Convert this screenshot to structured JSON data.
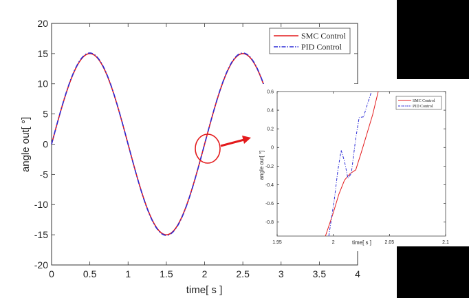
{
  "chart_data": [
    {
      "type": "line",
      "title": "",
      "xlabel": "time[ s ]",
      "ylabel": "angle out[ °]",
      "xlim": [
        0,
        4
      ],
      "ylim": [
        -20,
        20
      ],
      "xticks": [
        0,
        0.5,
        1,
        1.5,
        2,
        2.5,
        3,
        3.5,
        4
      ],
      "xtick_labels": [
        "0",
        "0.5",
        "1",
        "1.5",
        "2",
        "2.5",
        "3",
        "3.5",
        "4"
      ],
      "yticks": [
        -20,
        -15,
        -10,
        -5,
        0,
        5,
        10,
        15,
        20
      ],
      "ytick_labels": [
        "-20",
        "-15",
        "-10",
        "-5",
        "0",
        "5",
        "10",
        "15",
        "20"
      ],
      "grid": false,
      "legend": "top-right",
      "x_end": 2.82,
      "series": [
        {
          "name": "SMC Control",
          "color": "#e31a1c",
          "style": "solid",
          "amplitude": 15,
          "period": 2
        },
        {
          "name": "PID Control",
          "color": "#2b2bd6",
          "style": "dash-dot",
          "amplitude": 15.1,
          "period": 2
        }
      ],
      "annotations": [
        {
          "type": "ellipse",
          "x": 2.03,
          "y": 0,
          "color": "#e31a1c"
        },
        {
          "type": "arrow",
          "from": [
            2.2,
            0
          ],
          "to": "zoom-inset",
          "color": "#e31a1c"
        }
      ]
    },
    {
      "type": "line",
      "title": "",
      "xlabel": "time[ s ]",
      "ylabel": "angle out[ °]",
      "xlim": [
        1.95,
        2.1
      ],
      "ylim": [
        -0.95,
        0.6
      ],
      "xticks": [
        1.95,
        2,
        2.05,
        2.1
      ],
      "xtick_labels": [
        "1.95",
        "2",
        "2.05",
        "2.1"
      ],
      "yticks": [
        -0.8,
        -0.6,
        -0.4,
        -0.2,
        0,
        0.2,
        0.4,
        0.6
      ],
      "ytick_labels": [
        "-0.8",
        "-0.6",
        "-0.4",
        "-0.2",
        "0",
        "0.2",
        "0.4",
        "0.6"
      ],
      "grid": false,
      "legend": "top-right",
      "series": [
        {
          "name": "SMC Control",
          "color": "#e31a1c",
          "style": "solid",
          "x": [
            1.993,
            2.0,
            2.005,
            2.01,
            2.015,
            2.02,
            2.025,
            2.03,
            2.035,
            2.04
          ],
          "y": [
            -0.95,
            -0.7,
            -0.5,
            -0.35,
            -0.28,
            -0.24,
            -0.05,
            0.15,
            0.35,
            0.6
          ]
        },
        {
          "name": "PID Control",
          "color": "#2b2bd6",
          "style": "dash-dot",
          "x": [
            1.996,
            2.001,
            2.004,
            2.007,
            2.01,
            2.013,
            2.016,
            2.02,
            2.023,
            2.027,
            2.03,
            2.034
          ],
          "y": [
            -0.95,
            -0.55,
            -0.25,
            -0.03,
            -0.15,
            -0.33,
            -0.28,
            0.1,
            0.32,
            0.33,
            0.45,
            0.6
          ]
        }
      ]
    }
  ]
}
